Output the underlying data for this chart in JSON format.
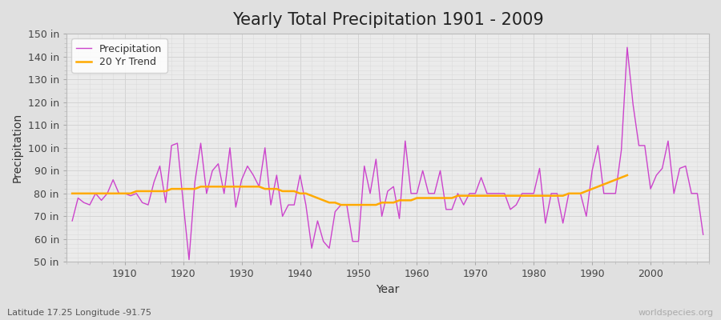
{
  "title": "Yearly Total Precipitation 1901 - 2009",
  "xlabel": "Year",
  "ylabel": "Precipitation",
  "subtitle": "Latitude 17.25 Longitude -91.75",
  "watermark": "worldspecies.org",
  "years": [
    1901,
    1902,
    1903,
    1904,
    1905,
    1906,
    1907,
    1908,
    1909,
    1910,
    1911,
    1912,
    1913,
    1914,
    1915,
    1916,
    1917,
    1918,
    1919,
    1920,
    1921,
    1922,
    1923,
    1924,
    1925,
    1926,
    1927,
    1928,
    1929,
    1930,
    1931,
    1932,
    1933,
    1934,
    1935,
    1936,
    1937,
    1938,
    1939,
    1940,
    1941,
    1942,
    1943,
    1944,
    1945,
    1946,
    1947,
    1948,
    1949,
    1950,
    1951,
    1952,
    1953,
    1954,
    1955,
    1956,
    1957,
    1958,
    1959,
    1960,
    1961,
    1962,
    1963,
    1964,
    1965,
    1966,
    1967,
    1968,
    1969,
    1970,
    1971,
    1972,
    1973,
    1974,
    1975,
    1976,
    1977,
    1978,
    1979,
    1980,
    1981,
    1982,
    1983,
    1984,
    1985,
    1986,
    1987,
    1988,
    1989,
    1990,
    1991,
    1992,
    1993,
    1994,
    1995,
    1996,
    1997,
    1998,
    1999,
    2000,
    2001,
    2002,
    2003,
    2004,
    2005,
    2006,
    2007,
    2008,
    2009
  ],
  "precipitation": [
    68,
    78,
    76,
    75,
    80,
    77,
    80,
    86,
    80,
    80,
    79,
    80,
    76,
    75,
    85,
    92,
    76,
    101,
    102,
    76,
    51,
    85,
    102,
    80,
    90,
    93,
    80,
    100,
    74,
    86,
    92,
    88,
    83,
    100,
    75,
    88,
    70,
    75,
    75,
    88,
    75,
    56,
    68,
    59,
    56,
    72,
    75,
    75,
    59,
    59,
    92,
    80,
    95,
    70,
    81,
    83,
    69,
    103,
    80,
    80,
    90,
    80,
    80,
    90,
    73,
    73,
    80,
    75,
    80,
    80,
    87,
    80,
    80,
    80,
    80,
    73,
    75,
    80,
    80,
    80,
    91,
    67,
    80,
    80,
    67,
    80,
    80,
    80,
    70,
    90,
    101,
    80,
    80,
    80,
    99,
    144,
    119,
    101,
    101,
    82,
    88,
    91,
    103,
    80,
    91,
    92,
    80,
    80,
    62
  ],
  "trend": [
    80,
    80,
    80,
    80,
    80,
    80,
    80,
    80,
    80,
    80,
    80,
    81,
    81,
    81,
    81,
    81,
    81,
    82,
    82,
    82,
    82,
    82,
    83,
    83,
    83,
    83,
    83,
    83,
    83,
    83,
    83,
    83,
    83,
    82,
    82,
    82,
    81,
    81,
    81,
    80,
    80,
    79,
    78,
    77,
    76,
    76,
    75,
    75,
    75,
    75,
    75,
    75,
    75,
    76,
    76,
    76,
    77,
    77,
    77,
    78,
    78,
    78,
    78,
    78,
    78,
    78,
    79,
    79,
    79,
    79,
    79,
    79,
    79,
    79,
    79,
    79,
    79,
    79,
    79,
    79,
    79,
    79,
    79,
    79,
    79,
    80,
    80,
    80,
    81,
    82,
    83,
    84,
    85,
    86,
    87,
    88,
    null,
    null,
    null,
    null,
    null,
    null,
    null,
    null,
    null,
    null,
    null,
    null,
    null
  ],
  "precip_color": "#cc44cc",
  "trend_color": "#ffaa00",
  "fig_bg_color": "#e0e0e0",
  "plot_bg_color": "#ebebeb",
  "grid_color": "#d0d0d0",
  "grid_color_minor": "#d8d8d8",
  "ylim": [
    50,
    150
  ],
  "yticks": [
    50,
    60,
    70,
    80,
    90,
    100,
    110,
    120,
    130,
    140,
    150
  ],
  "xtick_positions": [
    1910,
    1920,
    1930,
    1940,
    1950,
    1960,
    1970,
    1980,
    1990,
    2000
  ],
  "title_fontsize": 15,
  "axis_label_fontsize": 10,
  "tick_fontsize": 9,
  "legend_fontsize": 9
}
